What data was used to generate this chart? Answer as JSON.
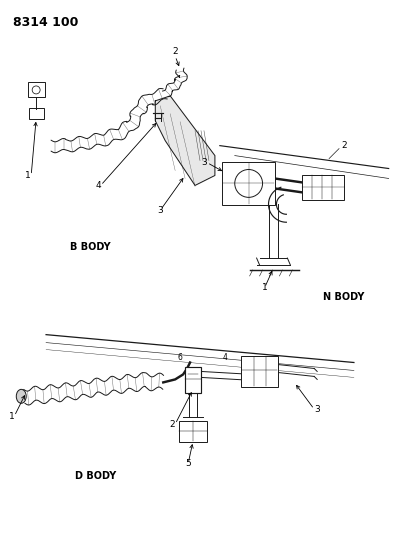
{
  "title_text": "8314 100",
  "background_color": "#ffffff",
  "line_color": "#1a1a1a",
  "text_color": "#000000",
  "b_body_label": "B BODY",
  "n_body_label": "N BODY",
  "d_body_label": "D BODY",
  "title_fontsize": 9,
  "label_fontsize": 7,
  "part_num_fontsize": 6.5,
  "fig_width": 3.99,
  "fig_height": 5.33,
  "dpi": 100
}
